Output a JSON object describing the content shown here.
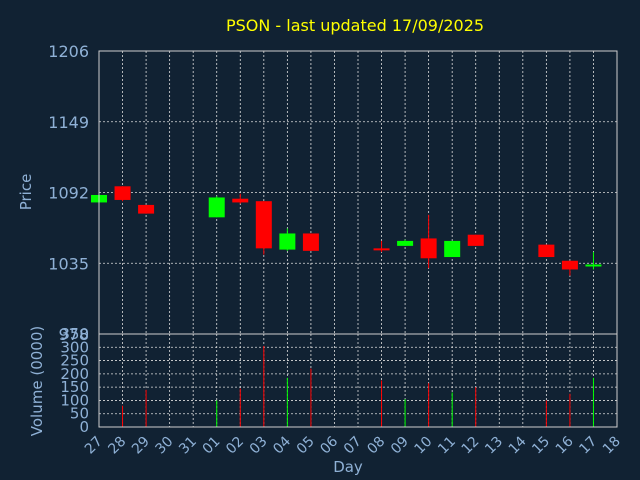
{
  "chart_data": {
    "type": "candlestick",
    "title": "PSON - last updated 17/09/2025",
    "xlabel": "Day",
    "price_label": "Price",
    "volume_label": "Volume (0000)",
    "price_ylim": [
      978,
      1206
    ],
    "price_ticks": [
      1206,
      1149,
      1092,
      1035,
      978
    ],
    "volume_ylim": [
      0,
      350
    ],
    "volume_ticks": [
      0,
      50,
      100,
      150,
      200,
      250,
      300,
      350
    ],
    "x_tick_labels": [
      "27",
      "28",
      "29",
      "30",
      "31",
      "01",
      "02",
      "03",
      "04",
      "05",
      "06",
      "07",
      "08",
      "09",
      "10",
      "11",
      "12",
      "13",
      "14",
      "15",
      "16",
      "17",
      "18"
    ],
    "colors": {
      "up": "#00ff00",
      "down": "#ff0000",
      "background": "#112233",
      "text": "#8fb1d6",
      "title": "#ffff00"
    },
    "candles": [
      {
        "day": "27",
        "open": 1084,
        "high": 1091,
        "low": 1084,
        "close": 1090,
        "volume": 0
      },
      {
        "day": "28",
        "open": 1097,
        "high": 1097,
        "low": 1085,
        "close": 1086,
        "volume": 80
      },
      {
        "day": "29",
        "open": 1082,
        "high": 1082,
        "low": 1075,
        "close": 1075,
        "volume": 140
      },
      {
        "day": "01",
        "open": 1072,
        "high": 1089,
        "low": 1072,
        "close": 1088,
        "volume": 100
      },
      {
        "day": "02",
        "open": 1087,
        "high": 1091,
        "low": 1083,
        "close": 1084,
        "volume": 145
      },
      {
        "day": "03",
        "open": 1085,
        "high": 1085,
        "low": 1042,
        "close": 1047,
        "volume": 305
      },
      {
        "day": "04",
        "open": 1046,
        "high": 1063,
        "low": 1045,
        "close": 1059,
        "volume": 185
      },
      {
        "day": "05",
        "open": 1059,
        "high": 1059,
        "low": 1045,
        "close": 1045,
        "volume": 220
      },
      {
        "day": "08",
        "open": 1047,
        "high": 1053,
        "low": 1044,
        "close": 1046,
        "volume": 175
      },
      {
        "day": "09",
        "open": 1049,
        "high": 1054,
        "low": 1049,
        "close": 1053,
        "volume": 105
      },
      {
        "day": "10",
        "open": 1055,
        "high": 1074,
        "low": 1031,
        "close": 1039,
        "volume": 165
      },
      {
        "day": "11",
        "open": 1040,
        "high": 1053,
        "low": 1040,
        "close": 1053,
        "volume": 130
      },
      {
        "day": "12",
        "open": 1058,
        "high": 1058,
        "low": 1049,
        "close": 1049,
        "volume": 150
      },
      {
        "day": "15",
        "open": 1050,
        "high": 1050,
        "low": 1040,
        "close": 1040,
        "volume": 100
      },
      {
        "day": "16",
        "open": 1037,
        "high": 1037,
        "low": 1025,
        "close": 1030,
        "volume": 125
      },
      {
        "day": "17",
        "open": 1033,
        "high": 1044,
        "low": 1030,
        "close": 1034,
        "volume": 185
      }
    ]
  }
}
